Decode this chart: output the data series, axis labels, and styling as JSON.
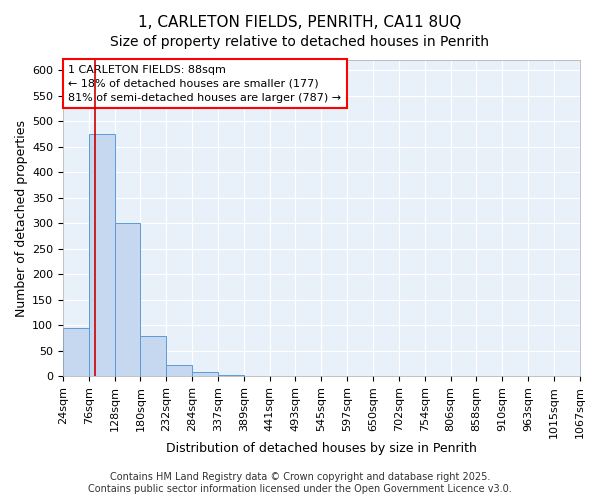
{
  "title": "1, CARLETON FIELDS, PENRITH, CA11 8UQ",
  "subtitle": "Size of property relative to detached houses in Penrith",
  "xlabel": "Distribution of detached houses by size in Penrith",
  "ylabel": "Number of detached properties",
  "bins": [
    24,
    76,
    128,
    180,
    232,
    284,
    337,
    389,
    441,
    493,
    545,
    597,
    650,
    702,
    754,
    806,
    858,
    910,
    963,
    1015,
    1067
  ],
  "bar_heights": [
    95,
    475,
    300,
    78,
    22,
    8,
    2,
    1,
    0,
    0,
    0,
    0,
    0,
    0,
    0,
    0,
    0,
    0,
    0,
    0
  ],
  "bar_color": "#c5d8f0",
  "bar_edge_color": "#5b9bd5",
  "bar_alpha": 1.0,
  "red_line_x": 88,
  "red_line_color": "#cc0000",
  "ylim": [
    0,
    620
  ],
  "yticks": [
    0,
    50,
    100,
    150,
    200,
    250,
    300,
    350,
    400,
    450,
    500,
    550,
    600
  ],
  "annotation_text": "1 CARLETON FIELDS: 88sqm\n← 18% of detached houses are smaller (177)\n81% of semi-detached houses are larger (787) →",
  "background_color": "#dce9f8",
  "plot_bg_color": "#e8f0fa",
  "footnote": "Contains HM Land Registry data © Crown copyright and database right 2025.\nContains public sector information licensed under the Open Government Licence v3.0.",
  "title_fontsize": 11,
  "subtitle_fontsize": 10,
  "xlabel_fontsize": 9,
  "ylabel_fontsize": 9,
  "tick_fontsize": 8,
  "annotation_fontsize": 8,
  "footnote_fontsize": 7
}
